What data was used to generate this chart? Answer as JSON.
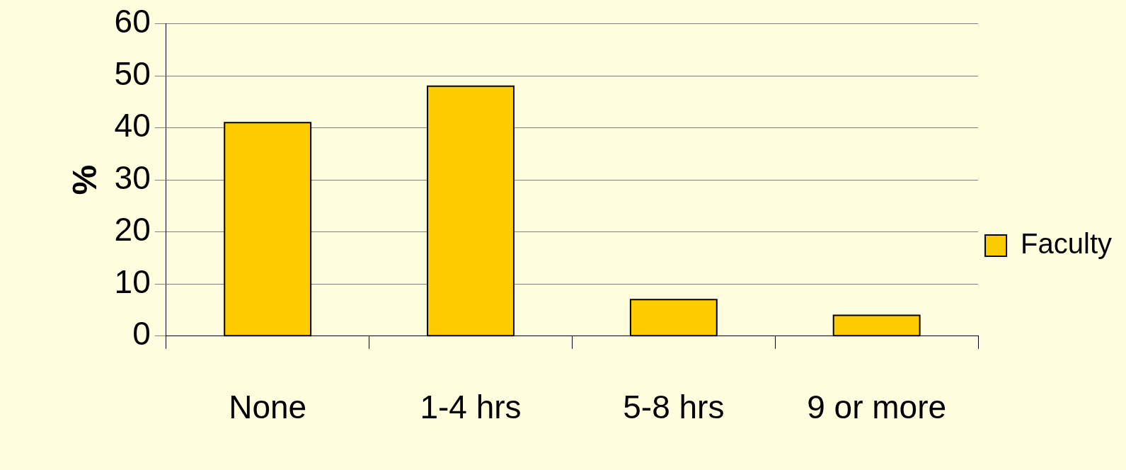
{
  "chart_data": {
    "type": "bar",
    "ylabel": "%",
    "categories": [
      "None",
      "1-4 hrs",
      "5-8 hrs",
      "9 or more"
    ],
    "series": [
      {
        "name": "Faculty",
        "color": "#ffcc00",
        "values": [
          41,
          48,
          7,
          4
        ]
      }
    ],
    "ylim": [
      0,
      60
    ],
    "yticks": [
      0,
      10,
      20,
      30,
      40,
      50,
      60
    ],
    "grid": "y",
    "legend": "right"
  }
}
